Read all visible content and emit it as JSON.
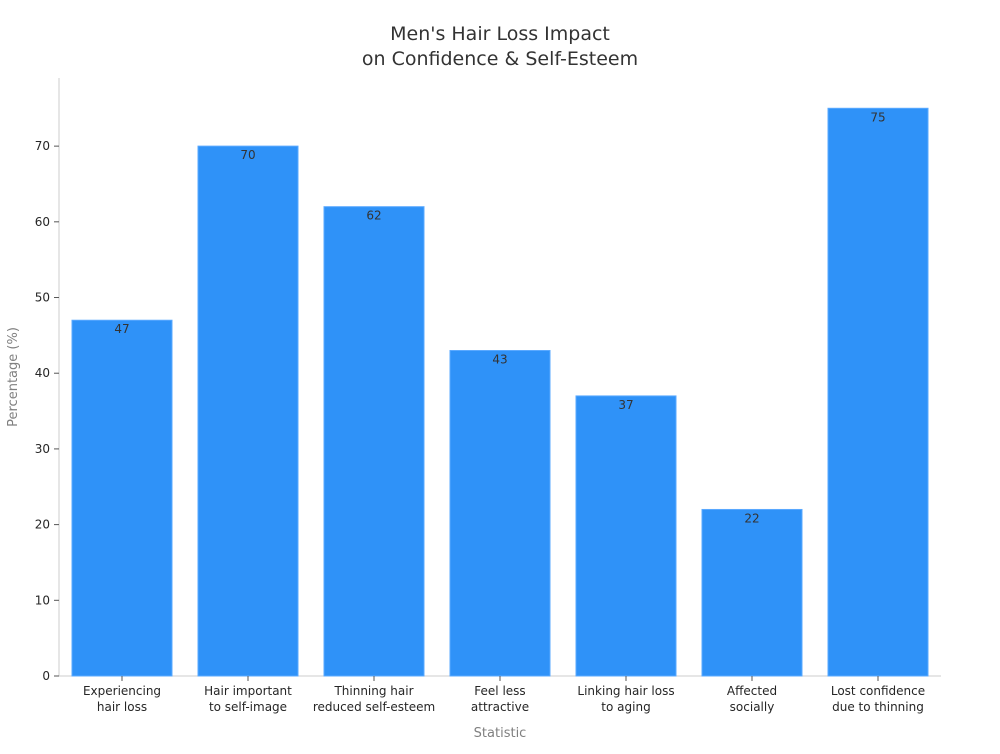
{
  "chart_data": {
    "type": "bar",
    "title_lines": [
      "Men's Hair Loss Impact",
      "on Confidence & Self-Esteem"
    ],
    "xlabel": "Statistic",
    "ylabel": "Percentage (%)",
    "categories": [
      [
        "Experiencing",
        "hair loss"
      ],
      [
        "Hair important",
        "to self-image"
      ],
      [
        "Thinning hair",
        "reduced self-esteem"
      ],
      [
        "Feel less",
        "attractive"
      ],
      [
        "Linking hair loss",
        "to aging"
      ],
      [
        "Affected",
        "socially"
      ],
      [
        "Lost confidence",
        "due to thinning"
      ]
    ],
    "values": [
      47,
      70,
      62,
      43,
      37,
      22,
      75
    ],
    "ylim": [
      0,
      79
    ],
    "yticks": [
      0,
      10,
      20,
      30,
      40,
      50,
      60,
      70
    ],
    "grid": false,
    "legend": "none",
    "colors": {
      "bar": "#2f92f8",
      "bar_edge": "#5aa9ff",
      "axis": "#cccccc",
      "tick_text": "#262626",
      "label_text": "#808080",
      "title_text": "#333333",
      "value_text": "#333333"
    }
  }
}
